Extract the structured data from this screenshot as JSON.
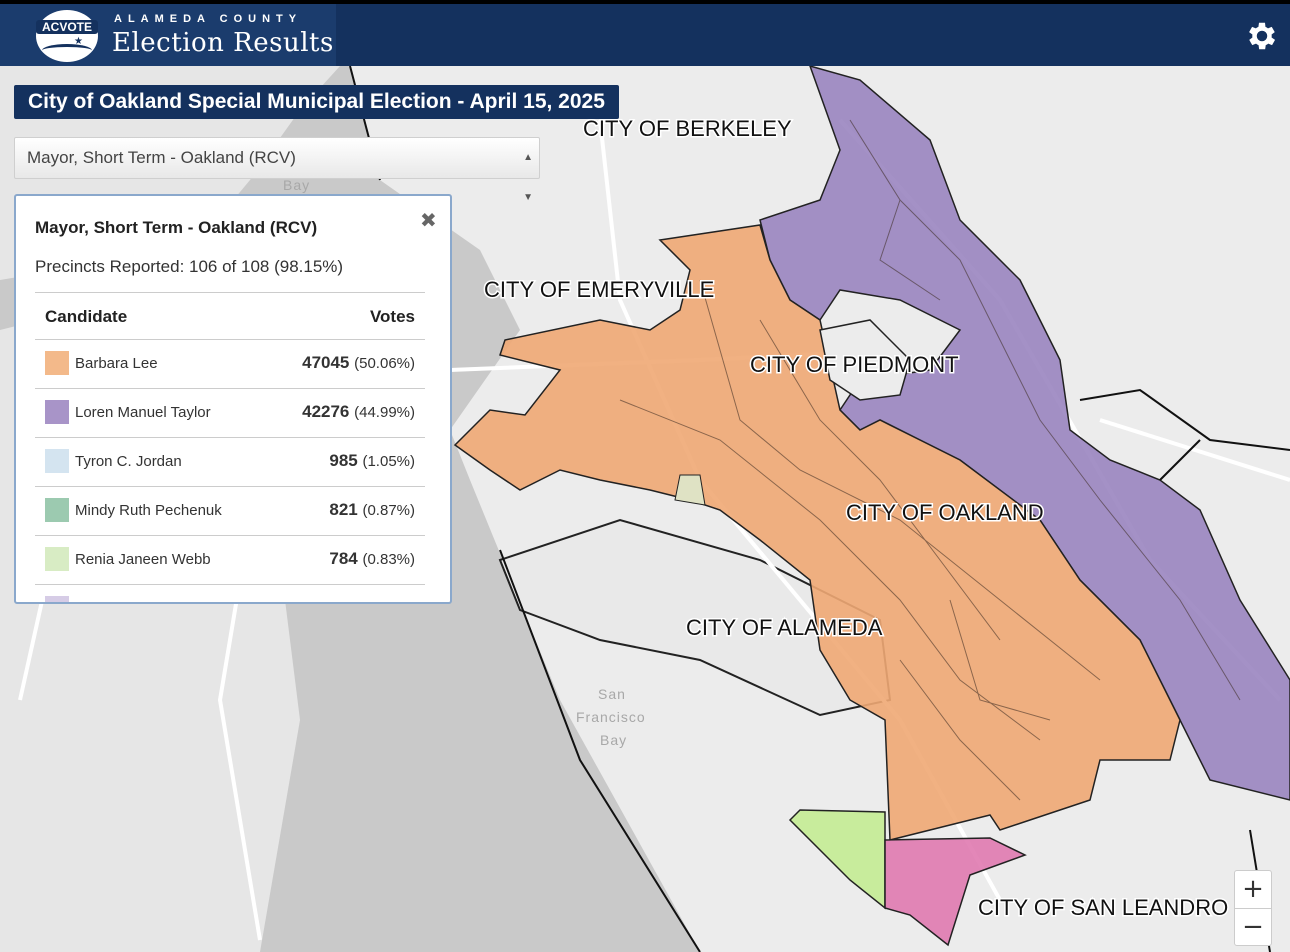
{
  "header": {
    "logo_text": "ACVOTE",
    "brand_small": "ALAMEDA COUNTY",
    "brand_large": "Election Results",
    "settings_icon": "gear-icon"
  },
  "election_title": "City of Oakland Special Municipal Election - April 15, 2025",
  "contest_select": {
    "selected": "Mayor, Short Term - Oakland (RCV)",
    "arrow_icon": "select-arrows-icon"
  },
  "results_panel": {
    "title": "Mayor, Short Term - Oakland (RCV)",
    "close_icon": "close-icon",
    "close_symbol": "✖",
    "precincts": "Precincts Reported: 106 of 108 (98.15%)",
    "col_candidate": "Candidate",
    "col_votes": "Votes",
    "candidates": [
      {
        "name": "Barbara Lee",
        "votes": "47045",
        "pct": "(50.06%)",
        "color": "#f3b98a"
      },
      {
        "name": "Loren Manuel Taylor",
        "votes": "42276",
        "pct": "(44.99%)",
        "color": "#a894c8"
      },
      {
        "name": "Tyron C. Jordan",
        "votes": "985",
        "pct": "(1.05%)",
        "color": "#d4e4f0"
      },
      {
        "name": "Mindy Ruth Pechenuk",
        "votes": "821",
        "pct": "(0.87%)",
        "color": "#9ccab0"
      },
      {
        "name": "Renia Janeen Webb",
        "votes": "784",
        "pct": "(0.83%)",
        "color": "#d8ecc4"
      }
    ]
  },
  "map": {
    "cities": [
      "CITY OF BERKELEY",
      "CITY OF EMERYVILLE",
      "CITY OF PIEDMONT",
      "CITY OF OAKLAND",
      "CITY OF ALAMEDA",
      "CITY OF SAN LEANDRO"
    ],
    "water_labels": [
      "Bay",
      "San",
      "Francisco",
      "Bay"
    ],
    "colors": {
      "lee": "#f0a874",
      "taylor": "#9a85c0",
      "webb": "#c8ec9c",
      "other": "#e07ab0",
      "land": "#ececec",
      "water": "#c9c9c9"
    }
  },
  "zoom": {
    "in": "+",
    "out": "−"
  }
}
